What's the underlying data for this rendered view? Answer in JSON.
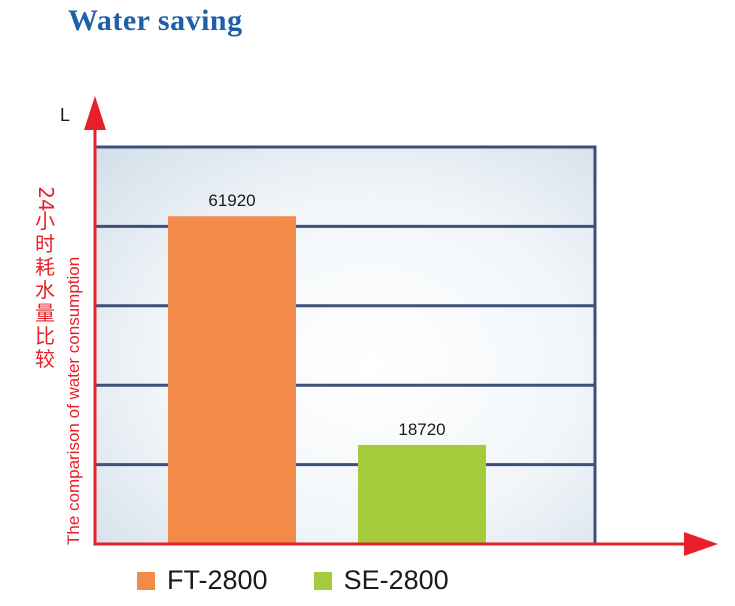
{
  "heading": "Water saving",
  "colors": {
    "heading": "#1f5ea8",
    "axis": "#e8202a",
    "frame": "#3d4f7c",
    "bar_ft": "#f28a4a",
    "bar_se": "#a5cb3d"
  },
  "chart_data": {
    "type": "bar",
    "title": "",
    "categories": [
      "FT-2800",
      "SE-2800"
    ],
    "values": [
      61920,
      18720
    ],
    "data_labels": [
      "61920",
      "18720"
    ],
    "unit_label": "L",
    "ylabel_cn": [
      "24",
      "小",
      "时",
      "耗",
      "水",
      "量",
      "比",
      "较"
    ],
    "ylabel_en": "The comparison of water consumption",
    "ylim": [
      0,
      75000
    ],
    "grid": true,
    "legend": {
      "position": "bottom",
      "entries": [
        {
          "label": "FT-2800",
          "color": "#f28a4a"
        },
        {
          "label": "SE-2800",
          "color": "#a5cb3d"
        }
      ]
    }
  }
}
